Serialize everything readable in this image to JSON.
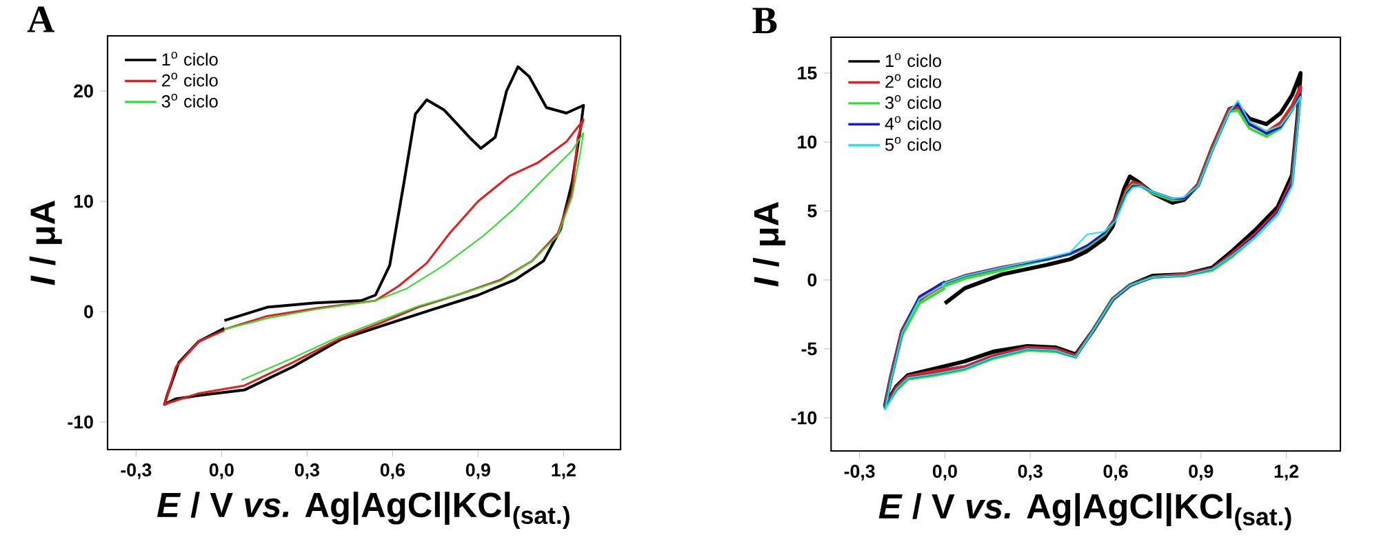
{
  "chart_data": [
    {
      "type": "line",
      "title": "A",
      "xlabel": "*E* / V *vs.* Ag|AgCl|KCl$_{(sat.)}$",
      "ylabel": "*I* / μA",
      "xlim": [
        -0.4,
        1.4
      ],
      "ylim": [
        -12.5,
        25
      ],
      "xticks": [
        {
          "value": -0.3,
          "label": "-0,3"
        },
        {
          "value": 0,
          "label": "0,0"
        },
        {
          "value": 0.3,
          "label": "0,3"
        },
        {
          "value": 0.6,
          "label": "0,6"
        },
        {
          "value": 0.9,
          "label": "0,9"
        },
        {
          "value": 1.2,
          "label": "1,2"
        }
      ],
      "yticks": [
        -10,
        0,
        10,
        20
      ],
      "grid": false,
      "legend": "top left",
      "marker": "none",
      "line_style": "solid",
      "series": [
        {
          "name": "1$^{o}$ ciclo",
          "color": "#000000",
          "x": [
            0.01,
            0.16,
            0.33,
            0.49,
            0.54,
            0.59,
            0.64,
            0.68,
            0.72,
            0.78,
            0.87,
            0.91,
            0.96,
            1.0,
            1.04,
            1.08,
            1.14,
            1.21,
            1.27,
            1.26,
            1.23,
            1.19,
            1.13,
            1.03,
            0.9,
            0.74,
            0.56,
            0.42,
            0.25,
            0.08,
            -0.08,
            -0.16,
            -0.2,
            -0.19,
            -0.15,
            -0.08,
            0.01
          ],
          "values": [
            -0.8,
            0.4,
            0.8,
            1.0,
            1.5,
            4.2,
            11.7,
            17.9,
            19.2,
            18.3,
            15.8,
            14.8,
            15.8,
            20,
            22.2,
            21.3,
            18.5,
            18,
            18.7,
            16.7,
            11.7,
            7.5,
            4.6,
            2.9,
            1.5,
            0.2,
            -1.3,
            -2.5,
            -5,
            -7.1,
            -7.6,
            -7.9,
            -8.4,
            -7.5,
            -4.6,
            -2.7,
            -1.5
          ]
        },
        {
          "name": "2$^{o}$ ciclo",
          "color": "#e02020",
          "x": [
            0.01,
            0.16,
            0.33,
            0.54,
            0.62,
            0.72,
            0.8,
            0.9,
            1.01,
            1.11,
            1.21,
            1.27,
            1.25,
            1.23,
            1.18,
            1.09,
            0.98,
            0.85,
            0.69,
            0.56,
            0.41,
            0.25,
            0.08,
            -0.08,
            -0.2,
            -0.16,
            -0.08,
            0.01
          ],
          "values": [
            -1.6,
            -0.4,
            0.3,
            1.0,
            2.3,
            4.4,
            7.1,
            10,
            12.3,
            13.5,
            15.4,
            17.4,
            15.8,
            10.8,
            7.1,
            4.6,
            2.9,
            1.7,
            0.4,
            -1.0,
            -2.5,
            -4.6,
            -6.7,
            -7.4,
            -8.4,
            -5,
            -2.7,
            -1.7
          ]
        },
        {
          "name": "3$^{o}$ ciclo",
          "color": "#33dd33",
          "x": [
            0.01,
            0.16,
            0.33,
            0.54,
            0.65,
            0.78,
            0.92,
            1.03,
            1.14,
            1.23,
            1.27,
            1.26,
            1.23,
            1.18,
            1.09,
            0.98,
            0.85,
            0.69,
            0.56,
            0.41,
            0.25,
            0.07
          ],
          "values": [
            -1.6,
            -0.6,
            0.2,
            1.0,
            2.1,
            4.2,
            6.9,
            9.4,
            12.3,
            14.6,
            16.2,
            14.6,
            10.4,
            6.9,
            4.6,
            2.8,
            1.7,
            0.5,
            -0.8,
            -2.3,
            -4.2,
            -6.2
          ]
        }
      ]
    },
    {
      "type": "line",
      "title": "B",
      "xlabel": "*E* / V *vs.* Ag|AgCl|KCl$_{(sat.)}$",
      "ylabel": "*I* / μA",
      "xlim": [
        -0.4,
        1.39
      ],
      "ylim": [
        -12.4,
        17.6
      ],
      "xticks": [
        {
          "value": -0.3,
          "label": "-0,3"
        },
        {
          "value": 0,
          "label": "0,0"
        },
        {
          "value": 0.3,
          "label": "0,3"
        },
        {
          "value": 0.6,
          "label": "0,6"
        },
        {
          "value": 0.9,
          "label": "0,9"
        },
        {
          "value": 1.2,
          "label": "1,2"
        }
      ],
      "yticks": [
        -10,
        -5,
        0,
        5,
        10,
        15
      ],
      "grid": false,
      "legend": "top left",
      "marker": "none",
      "line_style": "solid",
      "x": [
        -0.01,
        0.07,
        0.2,
        0.36,
        0.44,
        0.5,
        0.56,
        0.6,
        0.64,
        0.66,
        0.69,
        0.73,
        0.8,
        0.84,
        0.89,
        0.94,
        1.0,
        1.03,
        1.07,
        1.13,
        1.18,
        1.22,
        1.25,
        1.24,
        1.22,
        1.17,
        1.09,
        1.01,
        0.94,
        0.84,
        0.73,
        0.65,
        0.59,
        0.52,
        0.46,
        0.39,
        0.29,
        0.17,
        0.07,
        -0.03,
        -0.13,
        -0.17,
        -0.21,
        -0.19,
        -0.15,
        -0.09,
        0.0
      ],
      "series": [
        {
          "name": "1$^{o}$ ciclo",
          "color": "#000000",
          "x": [
            0,
            0.07,
            0.2,
            0.36,
            0.44,
            0.5,
            0.56,
            0.59,
            0.63,
            0.65,
            0.68,
            0.73,
            0.8,
            0.84,
            0.89,
            0.94,
            1.0,
            1.03,
            1.07,
            1.13,
            1.18,
            1.22,
            1.25,
            1.24,
            1.22,
            1.17,
            1.09,
            1.01,
            0.94,
            0.84,
            0.73,
            0.65,
            0.59,
            0.52,
            0.46,
            0.39,
            0.29,
            0.17,
            0.07,
            -0.03,
            -0.13,
            -0.17,
            -0.21,
            -0.19,
            -0.15,
            -0.09,
            -0.01
          ],
          "values": [
            -1.7,
            -0.6,
            0.4,
            1.1,
            1.5,
            2.1,
            3.0,
            3.9,
            6.6,
            7.5,
            7.1,
            6.3,
            5.6,
            5.8,
            6.9,
            9.6,
            12.4,
            12.6,
            11.7,
            11.3,
            12.1,
            13.4,
            15,
            11.9,
            7.6,
            5.3,
            3.6,
            2.1,
            0.9,
            0.4,
            0.3,
            -0.4,
            -1.4,
            -3.7,
            -5.4,
            -4.9,
            -4.8,
            -5.2,
            -5.9,
            -6.4,
            -6.9,
            -7.7,
            -9.1,
            -7.1,
            -3.7,
            -1.4,
            -0.3
          ]
        },
        {
          "name": "2$^{o}$ ciclo",
          "color": "#e02020",
          "values": [
            -0.3,
            0.3,
            0.9,
            1.5,
            1.9,
            2.4,
            3.3,
            4.5,
            6.6,
            7.1,
            6.9,
            6.3,
            5.8,
            5.9,
            6.9,
            9.6,
            12.4,
            12.5,
            11.3,
            10.7,
            11.4,
            12.6,
            14.0,
            11.5,
            7.2,
            5.0,
            3.3,
            1.9,
            0.8,
            0.4,
            0.2,
            -0.4,
            -1.4,
            -3.7,
            -5.5,
            -5.0,
            -4.9,
            -5.5,
            -6.3,
            -6.6,
            -7.0,
            -7.8,
            -9.2,
            -7.1,
            -3.7,
            -1.4,
            -0.3
          ]
        },
        {
          "name": "3$^{o}$ ciclo",
          "color": "#33dd33",
          "values": [
            -0.5,
            0.1,
            0.7,
            1.5,
            1.9,
            2.4,
            3.3,
            4.4,
            6.4,
            6.9,
            6.8,
            6.3,
            5.8,
            5.9,
            6.8,
            9.4,
            12.2,
            12.3,
            11.0,
            10.4,
            11.0,
            12.3,
            13.5,
            11.2,
            6.9,
            4.8,
            3.1,
            1.7,
            0.7,
            0.3,
            0.2,
            -0.4,
            -1.4,
            -3.7,
            -5.6,
            -5.2,
            -5.1,
            -5.7,
            -6.5,
            -6.9,
            -7.2,
            -8.0,
            -9.3,
            -7.2,
            -4.0,
            -1.7,
            -0.6
          ]
        },
        {
          "name": "4$^{o}$ ciclo",
          "color": "#1a1acc",
          "values": [
            -0.3,
            0.3,
            0.9,
            1.5,
            1.9,
            2.5,
            3.4,
            4.4,
            6.3,
            6.8,
            6.8,
            6.4,
            5.9,
            5.9,
            6.8,
            9.4,
            12.2,
            12.8,
            11.3,
            10.6,
            11.1,
            12.3,
            13.5,
            11.2,
            7.0,
            4.9,
            3.2,
            1.8,
            0.8,
            0.3,
            0.2,
            -0.4,
            -1.4,
            -3.7,
            -5.6,
            -5.1,
            -5.0,
            -5.6,
            -6.4,
            -6.8,
            -7.1,
            -7.9,
            -9.3,
            -7.2,
            -3.8,
            -1.2,
            -0.1
          ]
        },
        {
          "name": "5$^{o}$ ciclo",
          "color": "#22e5f0",
          "values": [
            -0.3,
            0.3,
            0.9,
            1.6,
            2.0,
            3.3,
            3.5,
            4.3,
            6.2,
            6.7,
            6.8,
            6.4,
            5.9,
            6.0,
            6.8,
            9.4,
            12.2,
            13.0,
            11.5,
            10.8,
            11.2,
            12.3,
            13.3,
            11.0,
            6.8,
            4.8,
            3.1,
            1.8,
            0.8,
            0.3,
            0.2,
            -0.4,
            -1.4,
            -3.7,
            -5.6,
            -5.1,
            -5.0,
            -5.6,
            -6.4,
            -6.8,
            -7.1,
            -7.9,
            -9.4,
            -7.3,
            -3.8,
            -1.4,
            -0.3
          ]
        }
      ]
    }
  ]
}
